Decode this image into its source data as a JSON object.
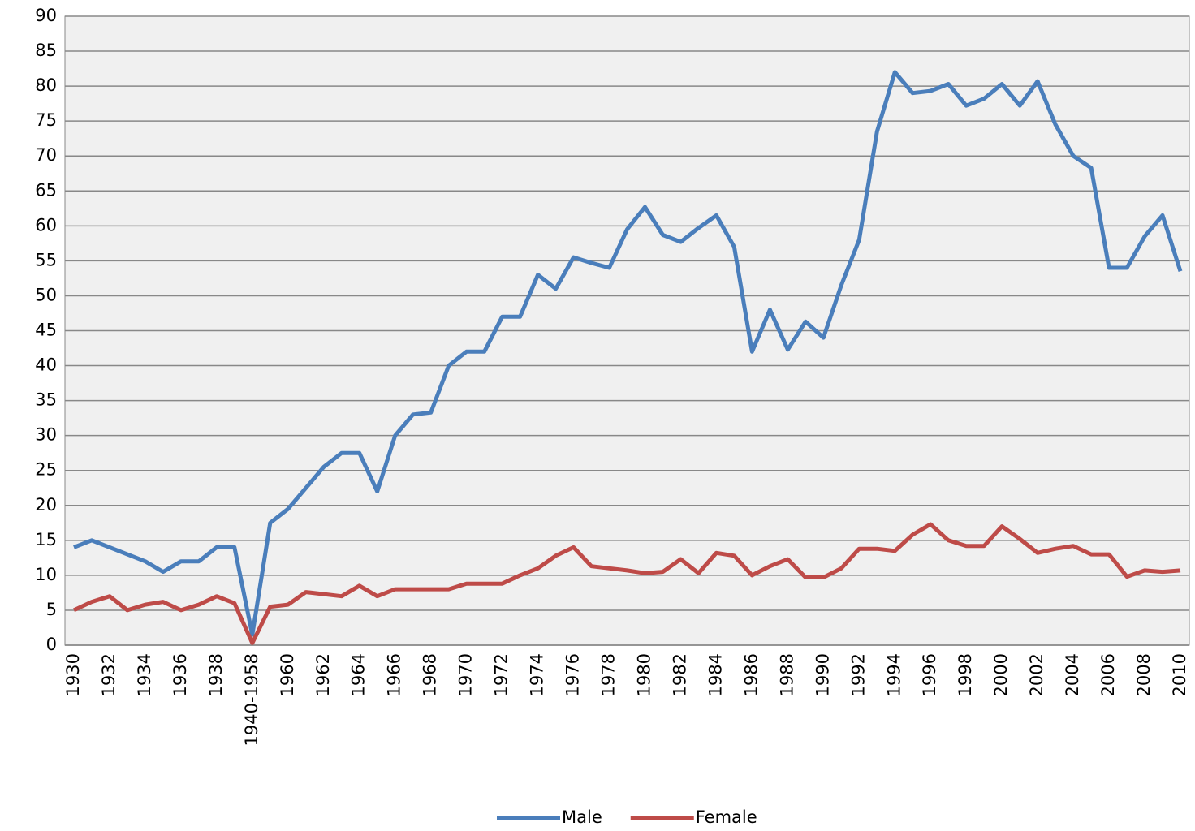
{
  "chart_data": {
    "type": "line",
    "categories": [
      "1930",
      null,
      "1932",
      null,
      "1934",
      null,
      "1936",
      null,
      "1938",
      null,
      "1940-1958",
      null,
      "1960",
      null,
      "1962",
      null,
      "1964",
      null,
      "1966",
      null,
      "1968",
      null,
      "1970",
      null,
      "1972",
      null,
      "1974",
      null,
      "1976",
      null,
      "1978",
      null,
      "1980",
      null,
      "1982",
      null,
      "1984",
      null,
      "1986",
      null,
      "1988",
      null,
      "1990",
      null,
      "1992",
      null,
      "1994",
      null,
      "1996",
      null,
      "1998",
      null,
      "2000",
      null,
      "2002",
      null,
      "2004",
      null,
      "2006",
      null,
      "2008",
      null,
      "2010"
    ],
    "series": [
      {
        "name": "Male",
        "color": "#4a7ebb",
        "values": [
          14,
          15,
          14,
          13,
          12,
          10.5,
          12,
          12,
          14,
          14,
          1.5,
          17.5,
          19.5,
          22.5,
          25.5,
          27.5,
          27.5,
          22,
          30,
          33,
          33.3,
          40,
          42,
          42,
          47,
          47,
          53,
          51,
          55.5,
          54.7,
          54,
          59.5,
          62.7,
          58.7,
          57.7,
          59.7,
          61.5,
          57,
          42,
          48,
          42.3,
          46.3,
          44,
          51.5,
          58,
          73.5,
          82,
          79,
          79.3,
          80.3,
          77.2,
          78.2,
          80.3,
          77.2,
          80.7,
          74.5,
          70,
          68.3,
          54,
          54,
          58.5,
          61.5,
          53.5
        ]
      },
      {
        "name": "Female",
        "color": "#be4b48",
        "values": [
          5,
          6.2,
          7,
          5,
          5.8,
          6.2,
          5,
          5.8,
          7,
          6,
          0.3,
          5.5,
          5.8,
          7.6,
          7.3,
          7,
          8.5,
          7,
          8,
          8,
          8,
          8,
          8.8,
          8.8,
          8.8,
          10,
          11,
          12.8,
          14,
          11.3,
          11,
          10.7,
          10.3,
          10.5,
          12.3,
          10.3,
          13.2,
          12.8,
          10,
          11.3,
          12.3,
          9.7,
          9.7,
          11,
          13.8,
          13.8,
          13.5,
          15.8,
          17.3,
          15,
          14.2,
          14.2,
          17,
          15.2,
          13.2,
          13.8,
          14.2,
          13,
          13,
          9.8,
          10.7,
          10.5,
          10.7
        ]
      }
    ],
    "ylim": [
      0,
      90
    ],
    "yticks": [
      0,
      5,
      10,
      15,
      20,
      25,
      30,
      35,
      40,
      45,
      50,
      55,
      60,
      65,
      70,
      75,
      80,
      85,
      90
    ],
    "grid": true,
    "legend": "bottom"
  }
}
